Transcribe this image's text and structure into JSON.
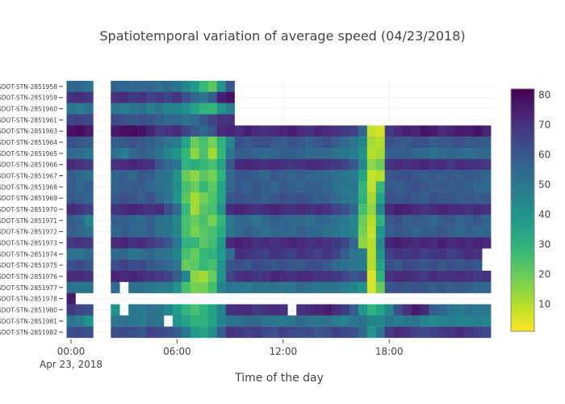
{
  "chart_data": {
    "type": "heatmap",
    "title": "Spatiotemporal variation of average speed (04/23/2018)",
    "xlabel": "Time of the day",
    "ylabel": "",
    "x_tick_labels": [
      "00:00",
      "06:00",
      "12:00",
      "18:00"
    ],
    "x_tick_hours": [
      0,
      6,
      12,
      18
    ],
    "x_date_label": "Apr 23, 2018",
    "colorscale": "viridis",
    "reversescale": true,
    "zrange": [
      1,
      82
    ],
    "colorbar_ticks": [
      10,
      20,
      30,
      40,
      50,
      60,
      70,
      80
    ],
    "grid": true,
    "x": [
      "00:00",
      "00:30",
      "01:00",
      "01:30",
      "02:00",
      "02:30",
      "03:00",
      "03:30",
      "04:00",
      "04:30",
      "05:00",
      "05:30",
      "06:00",
      "06:30",
      "07:00",
      "07:30",
      "08:00",
      "08:30",
      "09:00",
      "09:30",
      "10:00",
      "10:30",
      "11:00",
      "11:30",
      "12:00",
      "12:30",
      "13:00",
      "13:30",
      "14:00",
      "14:30",
      "15:00",
      "15:30",
      "16:00",
      "16:30",
      "17:00",
      "17:30",
      "18:00",
      "18:30",
      "19:00",
      "19:30",
      "20:00",
      "20:30",
      "21:00",
      "21:30",
      "22:00",
      "22:30",
      "23:00",
      "23:30"
    ],
    "y": [
      "GDOT-STN-2851958",
      "GDOT-STN-2851959",
      "GDOT-STN-2851960",
      "GDOT-STN-2851961",
      "GDOT-STN-2851963",
      "GDOT-STN-2851964",
      "GDOT-STN-2851965",
      "GDOT-STN-2851966",
      "GDOT-STN-2851967",
      "GDOT-STN-2851968",
      "GDOT-STN-2851969",
      "GDOT-STN-2851970",
      "GDOT-STN-2851971",
      "GDOT-STN-2851972",
      "GDOT-STN-2851973",
      "GDOT-STN-2851974",
      "GDOT-STN-2851975",
      "GDOT-STN-2851976",
      "GDOT-STN-2851977",
      "GDOT-STN-2851978",
      "GDOT-STN-2851980",
      "GDOT-STN-2851981",
      "GDOT-STN-2851982"
    ],
    "z": [
      [
        55,
        56,
        50,
        null,
        null,
        57,
        56,
        55,
        54,
        55,
        52,
        55,
        50,
        45,
        38,
        28,
        22,
        40,
        60,
        null,
        null,
        null,
        null,
        null,
        null,
        null,
        null,
        null,
        null,
        null,
        null,
        null,
        null,
        null,
        null,
        null,
        null,
        null,
        null,
        null,
        null,
        null,
        null,
        null,
        null,
        null,
        null,
        null
      ],
      [
        70,
        72,
        68,
        null,
        null,
        70,
        72,
        68,
        70,
        66,
        68,
        65,
        70,
        62,
        55,
        50,
        58,
        75,
        78,
        null,
        null,
        null,
        null,
        null,
        null,
        null,
        null,
        null,
        null,
        null,
        null,
        null,
        null,
        null,
        null,
        null,
        null,
        null,
        null,
        null,
        null,
        null,
        null,
        null,
        null,
        null,
        null,
        null
      ],
      [
        50,
        48,
        52,
        null,
        null,
        50,
        48,
        50,
        52,
        48,
        50,
        46,
        45,
        42,
        35,
        30,
        28,
        40,
        48,
        null,
        null,
        null,
        null,
        null,
        null,
        null,
        null,
        null,
        null,
        null,
        null,
        null,
        null,
        null,
        null,
        null,
        null,
        null,
        null,
        null,
        null,
        null,
        null,
        null,
        null,
        null,
        null,
        null
      ],
      [
        65,
        66,
        64,
        null,
        null,
        64,
        62,
        60,
        62,
        60,
        58,
        55,
        56,
        52,
        54,
        60,
        66,
        70,
        70,
        null,
        null,
        null,
        null,
        null,
        null,
        null,
        null,
        null,
        null,
        null,
        null,
        null,
        null,
        null,
        null,
        null,
        null,
        null,
        null,
        null,
        null,
        null,
        null,
        null,
        null,
        null,
        null,
        null
      ],
      [
        78,
        80,
        76,
        null,
        null,
        76,
        78,
        80,
        78,
        74,
        68,
        70,
        72,
        65,
        60,
        55,
        60,
        72,
        74,
        72,
        75,
        72,
        70,
        72,
        74,
        75,
        72,
        70,
        74,
        72,
        70,
        68,
        66,
        55,
        8,
        6,
        68,
        72,
        75,
        74,
        78,
        76,
        72,
        74,
        76,
        75,
        78,
        74
      ],
      [
        62,
        60,
        58,
        null,
        null,
        58,
        60,
        62,
        60,
        58,
        55,
        50,
        48,
        35,
        20,
        25,
        18,
        30,
        45,
        62,
        60,
        62,
        62,
        60,
        58,
        62,
        60,
        58,
        60,
        62,
        58,
        55,
        50,
        45,
        12,
        10,
        62,
        60,
        60,
        62,
        62,
        58,
        60,
        60,
        62,
        60,
        60,
        58
      ],
      [
        55,
        54,
        50,
        null,
        null,
        52,
        48,
        55,
        58,
        56,
        50,
        45,
        40,
        28,
        15,
        25,
        12,
        28,
        50,
        58,
        58,
        56,
        55,
        56,
        58,
        58,
        56,
        54,
        55,
        55,
        52,
        50,
        48,
        40,
        10,
        12,
        58,
        58,
        58,
        56,
        55,
        52,
        55,
        56,
        55,
        52,
        55,
        54
      ],
      [
        72,
        70,
        68,
        null,
        null,
        70,
        72,
        74,
        72,
        70,
        60,
        55,
        50,
        30,
        32,
        28,
        25,
        35,
        60,
        72,
        74,
        72,
        70,
        72,
        70,
        68,
        70,
        72,
        72,
        70,
        68,
        65,
        60,
        45,
        15,
        20,
        70,
        72,
        70,
        72,
        74,
        70,
        72,
        68,
        72,
        70,
        70,
        68
      ],
      [
        58,
        56,
        52,
        null,
        null,
        56,
        58,
        55,
        60,
        58,
        52,
        50,
        40,
        20,
        15,
        22,
        18,
        30,
        55,
        60,
        60,
        58,
        55,
        60,
        58,
        56,
        58,
        56,
        56,
        55,
        52,
        50,
        48,
        35,
        8,
        10,
        60,
        62,
        62,
        60,
        58,
        60,
        58,
        60,
        58,
        60,
        58,
        56
      ],
      [
        58,
        55,
        58,
        null,
        null,
        56,
        58,
        60,
        58,
        55,
        52,
        50,
        42,
        25,
        20,
        28,
        22,
        35,
        55,
        60,
        58,
        60,
        58,
        56,
        60,
        58,
        56,
        58,
        58,
        56,
        52,
        50,
        50,
        30,
        8,
        28,
        60,
        58,
        60,
        62,
        60,
        58,
        60,
        58,
        60,
        58,
        56,
        54
      ],
      [
        60,
        58,
        56,
        null,
        null,
        60,
        62,
        60,
        58,
        62,
        55,
        50,
        40,
        22,
        12,
        18,
        24,
        35,
        60,
        62,
        60,
        60,
        58,
        60,
        62,
        60,
        62,
        60,
        58,
        58,
        55,
        50,
        48,
        30,
        12,
        35,
        62,
        60,
        62,
        60,
        58,
        62,
        60,
        60,
        58,
        60,
        58,
        60
      ],
      [
        72,
        70,
        66,
        null,
        null,
        70,
        72,
        74,
        72,
        70,
        72,
        62,
        55,
        28,
        12,
        22,
        25,
        40,
        72,
        74,
        72,
        70,
        72,
        74,
        72,
        70,
        72,
        70,
        72,
        70,
        65,
        62,
        55,
        25,
        15,
        45,
        72,
        75,
        74,
        72,
        70,
        72,
        74,
        72,
        72,
        70,
        72,
        70
      ],
      [
        58,
        56,
        45,
        null,
        null,
        58,
        58,
        56,
        55,
        58,
        52,
        50,
        45,
        25,
        20,
        25,
        18,
        28,
        50,
        55,
        55,
        50,
        55,
        58,
        56,
        55,
        55,
        52,
        56,
        55,
        52,
        50,
        45,
        20,
        10,
        30,
        60,
        62,
        58,
        60,
        58,
        55,
        58,
        60,
        56,
        58,
        60,
        56
      ],
      [
        58,
        55,
        52,
        null,
        null,
        55,
        58,
        56,
        55,
        58,
        52,
        50,
        45,
        25,
        18,
        22,
        25,
        32,
        50,
        55,
        58,
        55,
        52,
        55,
        56,
        55,
        58,
        56,
        55,
        52,
        50,
        48,
        45,
        18,
        8,
        40,
        58,
        60,
        58,
        56,
        58,
        58,
        60,
        58,
        55,
        58,
        56,
        56
      ],
      [
        68,
        70,
        68,
        null,
        null,
        72,
        74,
        70,
        72,
        68,
        65,
        60,
        50,
        30,
        28,
        22,
        26,
        38,
        72,
        75,
        74,
        70,
        72,
        70,
        72,
        74,
        72,
        70,
        72,
        70,
        68,
        65,
        55,
        15,
        10,
        45,
        74,
        76,
        74,
        72,
        74,
        72,
        75,
        72,
        74,
        72,
        74,
        72
      ],
      [
        52,
        50,
        55,
        null,
        null,
        55,
        56,
        50,
        52,
        56,
        52,
        50,
        45,
        25,
        20,
        28,
        30,
        38,
        52,
        72,
        70,
        68,
        66,
        70,
        68,
        66,
        70,
        68,
        66,
        70,
        65,
        58,
        50,
        48,
        10,
        40,
        66,
        70,
        68,
        70,
        66,
        68,
        70,
        66,
        68,
        72,
        70,
        null
      ],
      [
        62,
        64,
        60,
        null,
        null,
        62,
        66,
        62,
        64,
        60,
        58,
        55,
        50,
        20,
        22,
        28,
        25,
        40,
        60,
        62,
        60,
        64,
        62,
        60,
        62,
        60,
        60,
        62,
        62,
        60,
        55,
        52,
        50,
        48,
        10,
        35,
        62,
        60,
        64,
        62,
        60,
        62,
        60,
        62,
        60,
        62,
        60,
        null
      ],
      [
        72,
        72,
        70,
        null,
        null,
        74,
        72,
        74,
        72,
        70,
        68,
        65,
        58,
        45,
        15,
        12,
        20,
        40,
        65,
        70,
        72,
        68,
        70,
        74,
        72,
        70,
        72,
        72,
        70,
        70,
        68,
        65,
        60,
        62,
        5,
        30,
        70,
        72,
        72,
        70,
        68,
        72,
        70,
        70,
        72,
        70,
        68,
        70
      ],
      [
        52,
        50,
        50,
        null,
        null,
        55,
        null,
        52,
        52,
        50,
        48,
        48,
        40,
        25,
        18,
        18,
        25,
        45,
        50,
        50,
        48,
        52,
        50,
        52,
        50,
        50,
        55,
        52,
        50,
        52,
        50,
        48,
        45,
        40,
        6,
        20,
        60,
        62,
        60,
        62,
        60,
        58,
        60,
        58,
        60,
        58,
        56,
        55
      ],
      [
        76,
        null,
        null,
        null,
        null,
        null,
        null,
        null,
        null,
        null,
        null,
        null,
        null,
        null,
        null,
        null,
        null,
        null,
        null,
        null,
        null,
        null,
        null,
        null,
        null,
        null,
        null,
        null,
        null,
        null,
        null,
        null,
        null,
        null,
        null,
        null,
        null,
        null,
        null,
        null,
        null,
        null,
        null,
        null,
        null,
        null,
        null,
        null
      ],
      [
        68,
        65,
        62,
        null,
        null,
        40,
        null,
        50,
        48,
        52,
        50,
        45,
        38,
        30,
        25,
        30,
        35,
        45,
        70,
        72,
        72,
        68,
        70,
        72,
        70,
        null,
        70,
        72,
        74,
        76,
        72,
        68,
        58,
        40,
        30,
        35,
        45,
        62,
        70,
        76,
        72,
        58,
        55,
        50,
        48,
        52,
        48,
        50
      ],
      [
        50,
        48,
        40,
        null,
        null,
        50,
        52,
        50,
        48,
        52,
        50,
        null,
        40,
        35,
        30,
        30,
        35,
        45,
        50,
        52,
        55,
        54,
        52,
        50,
        48,
        50,
        55,
        52,
        50,
        52,
        48,
        46,
        50,
        52,
        45,
        45,
        50,
        48,
        50,
        52,
        45,
        44,
        45,
        48,
        45,
        46,
        48,
        45
      ],
      [
        62,
        64,
        62,
        null,
        null,
        62,
        64,
        62,
        60,
        66,
        64,
        62,
        58,
        50,
        38,
        35,
        42,
        58,
        70,
        68,
        66,
        68,
        64,
        62,
        66,
        64,
        62,
        64,
        60,
        62,
        66,
        64,
        62,
        55,
        40,
        50,
        68,
        72,
        70,
        66,
        64,
        66,
        68,
        70,
        72,
        68,
        66,
        64
      ]
    ]
  }
}
